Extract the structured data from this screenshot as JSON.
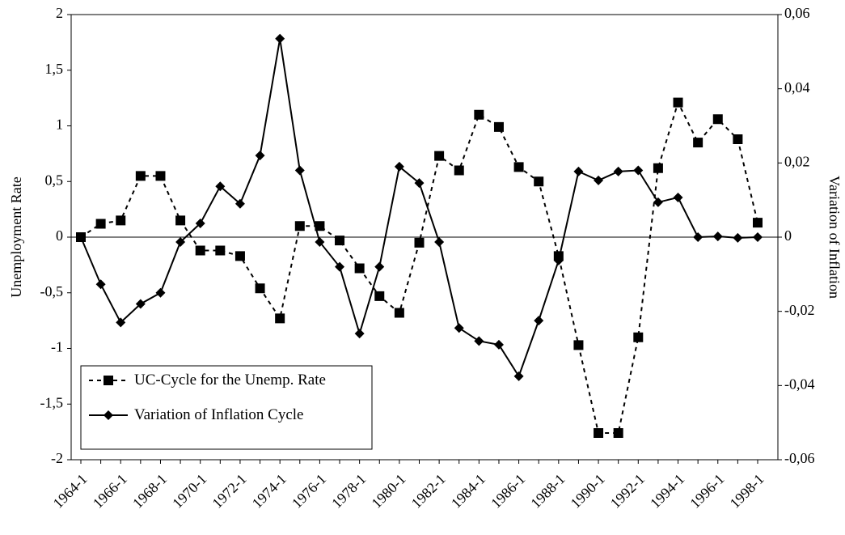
{
  "chart_data": {
    "type": "line",
    "y_label": "Unemployment Rate",
    "y2_label": "Variation of Inflation",
    "categories": [
      "1964-1",
      null,
      "1966-1",
      null,
      "1968-1",
      null,
      "1970-1",
      null,
      "1972-1",
      null,
      "1974-1",
      null,
      "1976-1",
      null,
      "1978-1",
      null,
      "1980-1",
      null,
      "1982-1",
      null,
      "1984-1",
      null,
      "1986-1",
      null,
      "1988-1",
      null,
      "1990-1",
      null,
      "1992-1",
      null,
      "1994-1",
      null,
      "1996-1",
      null,
      "1998-1"
    ],
    "series": [
      {
        "name": "UC-Cycle for the Unemp. Rate",
        "color": "#000000",
        "linestyle": "dashed",
        "marker": "square",
        "values": [
          0,
          0.12,
          0.15,
          0.55,
          0.55,
          0.15,
          -0.12,
          -0.12,
          -0.17,
          -0.46,
          -0.73,
          0.1,
          0.1,
          -0.03,
          -0.28,
          -0.53,
          -0.68,
          -0.05,
          0.73,
          0.6,
          1.1,
          0.99,
          0.63,
          0.5,
          -0.17,
          -0.97,
          -1.76,
          -1.76,
          -0.9,
          0.62,
          1.21,
          0.85,
          1.06,
          0.88,
          0.13
        ]
      },
      {
        "name": "Variation of Inflation Cycle",
        "color": "#000000",
        "linestyle": "solid",
        "marker": "diamond",
        "axis": "y2",
        "values": [
          0,
          -0.0127,
          -0.023,
          -0.018,
          -0.015,
          -0.0013,
          0.0037,
          0.0137,
          0.009,
          0.022,
          0.0535,
          0.018,
          -0.0013,
          -0.008,
          -0.026,
          -0.008,
          0.019,
          0.0146,
          -0.0013,
          -0.0245,
          -0.028,
          -0.029,
          -0.0375,
          -0.0225,
          -0.0063,
          0.0177,
          0.0153,
          0.0177,
          0.018,
          0.0094,
          0.0107,
          0,
          0.0002,
          -0.0002,
          0
        ]
      }
    ],
    "ylim": [
      -2,
      2
    ],
    "yticks": [
      2,
      {
        "value": 1.5,
        "label": "1,5"
      },
      1,
      {
        "value": 0.5,
        "label": "0,5"
      },
      0,
      {
        "value": -0.5,
        "label": "-0,5"
      },
      -1,
      {
        "value": -1.5,
        "label": "-1,5"
      },
      -2
    ],
    "y2lim": [
      -0.06,
      0.06
    ],
    "y2ticks": [
      {
        "value": 0.06,
        "label": "0,06"
      },
      {
        "value": 0.04,
        "label": "0,04"
      },
      {
        "value": 0.02,
        "label": "0,02"
      },
      0,
      {
        "value": -0.02,
        "label": "-0,02"
      },
      {
        "value": -0.04,
        "label": "-0,04"
      },
      {
        "value": -0.06,
        "label": "-0,06"
      }
    ],
    "grid": false,
    "legend": "lower left"
  }
}
